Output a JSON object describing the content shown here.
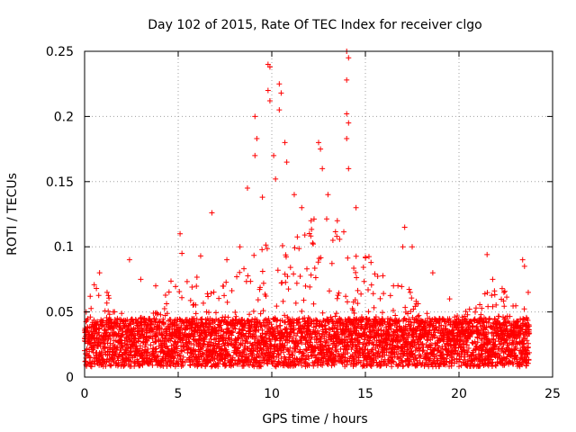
{
  "chart_data": {
    "type": "scatter",
    "title": "Day 102 of 2015, Rate Of TEC Index for receiver clgo",
    "xlabel": "GPS time / hours",
    "ylabel": "ROTI / TECUs",
    "xlim": [
      0,
      25
    ],
    "ylim": [
      0,
      0.25
    ],
    "xticks": [
      0,
      5,
      10,
      15,
      20,
      25
    ],
    "yticks": [
      0,
      0.05,
      0.1,
      0.15,
      0.2,
      0.25
    ],
    "xtick_labels": [
      "0",
      "5",
      "10",
      "15",
      "20",
      "25"
    ],
    "ytick_labels": [
      "0",
      "0.05",
      "0.1",
      "0.15",
      "0.2",
      "0.25"
    ],
    "grid": true,
    "marker": "+",
    "series": [
      {
        "name": "ROTI",
        "color": "#ff0000",
        "x_range": [
          0,
          23.75
        ],
        "x_step": 0.025,
        "baseline_min": 0.008,
        "baseline_max": 0.045,
        "notable_points": [
          {
            "x": 0.3,
            "y": 0.062
          },
          {
            "x": 0.8,
            "y": 0.08
          },
          {
            "x": 1.2,
            "y": 0.065
          },
          {
            "x": 2.4,
            "y": 0.09
          },
          {
            "x": 3.0,
            "y": 0.075
          },
          {
            "x": 3.8,
            "y": 0.07
          },
          {
            "x": 5.1,
            "y": 0.11
          },
          {
            "x": 5.2,
            "y": 0.095
          },
          {
            "x": 6.2,
            "y": 0.093
          },
          {
            "x": 6.8,
            "y": 0.126
          },
          {
            "x": 7.6,
            "y": 0.09
          },
          {
            "x": 8.3,
            "y": 0.1
          },
          {
            "x": 8.7,
            "y": 0.145
          },
          {
            "x": 9.1,
            "y": 0.2
          },
          {
            "x": 9.2,
            "y": 0.183
          },
          {
            "x": 9.1,
            "y": 0.17
          },
          {
            "x": 9.5,
            "y": 0.138
          },
          {
            "x": 9.8,
            "y": 0.24
          },
          {
            "x": 9.9,
            "y": 0.238
          },
          {
            "x": 9.8,
            "y": 0.22
          },
          {
            "x": 9.9,
            "y": 0.212
          },
          {
            "x": 10.1,
            "y": 0.17
          },
          {
            "x": 10.2,
            "y": 0.152
          },
          {
            "x": 10.4,
            "y": 0.225
          },
          {
            "x": 10.4,
            "y": 0.205
          },
          {
            "x": 10.5,
            "y": 0.218
          },
          {
            "x": 10.7,
            "y": 0.18
          },
          {
            "x": 10.8,
            "y": 0.165
          },
          {
            "x": 11.2,
            "y": 0.14
          },
          {
            "x": 11.6,
            "y": 0.13
          },
          {
            "x": 12.1,
            "y": 0.12
          },
          {
            "x": 12.5,
            "y": 0.18
          },
          {
            "x": 12.6,
            "y": 0.175
          },
          {
            "x": 12.7,
            "y": 0.16
          },
          {
            "x": 13.0,
            "y": 0.14
          },
          {
            "x": 13.5,
            "y": 0.12
          },
          {
            "x": 14.0,
            "y": 0.25
          },
          {
            "x": 14.1,
            "y": 0.245
          },
          {
            "x": 14.0,
            "y": 0.228
          },
          {
            "x": 14.0,
            "y": 0.202
          },
          {
            "x": 14.1,
            "y": 0.195
          },
          {
            "x": 14.0,
            "y": 0.183
          },
          {
            "x": 14.1,
            "y": 0.16
          },
          {
            "x": 14.5,
            "y": 0.13
          },
          {
            "x": 15.0,
            "y": 0.092
          },
          {
            "x": 15.3,
            "y": 0.088
          },
          {
            "x": 16.5,
            "y": 0.07
          },
          {
            "x": 17.1,
            "y": 0.115
          },
          {
            "x": 17.0,
            "y": 0.1
          },
          {
            "x": 17.5,
            "y": 0.1
          },
          {
            "x": 17.4,
            "y": 0.065
          },
          {
            "x": 18.6,
            "y": 0.08
          },
          {
            "x": 19.5,
            "y": 0.06
          },
          {
            "x": 21.5,
            "y": 0.094
          },
          {
            "x": 21.8,
            "y": 0.075
          },
          {
            "x": 22.4,
            "y": 0.065
          },
          {
            "x": 23.4,
            "y": 0.09
          },
          {
            "x": 23.5,
            "y": 0.085
          },
          {
            "x": 23.7,
            "y": 0.065
          }
        ]
      }
    ]
  }
}
